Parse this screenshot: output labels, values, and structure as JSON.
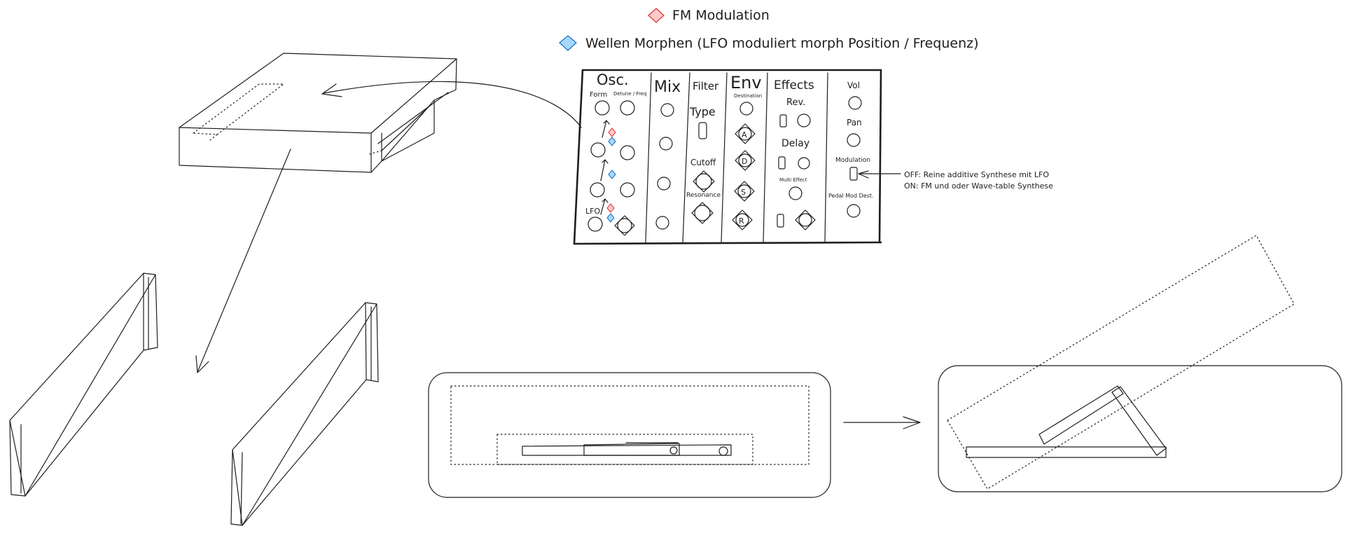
{
  "legend": {
    "fm": "FM Modulation",
    "morph": "Wellen Morphen (LFO moduliert morph Position / Frequenz)"
  },
  "colors": {
    "fm_diamond_fill": "#ffc9c9",
    "fm_diamond_stroke": "#e03131",
    "morph_diamond_fill": "#a5d8ff",
    "morph_diamond_stroke": "#1971c2",
    "ink": "#1e1e1e"
  },
  "panel": {
    "osc": "Osc.",
    "form": "Form",
    "detune": "Detune / Freq",
    "lfo": "LFO",
    "mix": "Mix",
    "filter": "Filter",
    "type": "Type",
    "cutoff": "Cutoff",
    "resonance": "Resonance",
    "env": "Env",
    "destination": "Destination",
    "env_a": "A",
    "env_d": "D",
    "env_s": "S",
    "env_r": "R",
    "effects": "Effects",
    "rev": "Rev.",
    "delay": "Delay",
    "multi_effect": "Multi Effect",
    "vol": "Vol",
    "pan": "Pan",
    "modulation": "Modulation",
    "pedal_mod": "Pedal Mod Dest."
  },
  "note": {
    "off": "OFF: Reine additive Synthese mit LFO",
    "on": "ON: FM und oder Wave-table Synthese"
  }
}
